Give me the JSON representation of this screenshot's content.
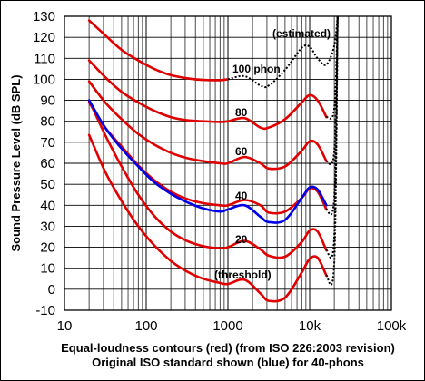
{
  "chart_data": {
    "type": "line",
    "xscale": "log",
    "xlim": [
      10,
      100000
    ],
    "ylim": [
      -10,
      130
    ],
    "grid": true,
    "x_ticks": [
      "10",
      "100",
      "1000",
      "10k",
      "100k"
    ],
    "y_ticks": [
      "130",
      "120",
      "110",
      "100",
      "90",
      "80",
      "70",
      "60",
      "50",
      "40",
      "30",
      "20",
      "10",
      "0",
      "-10"
    ],
    "ylabel": "Sound Pressure Level (dB SPL)",
    "xlabel_line1": "Equal-loudness contours (red) (from ISO 226:2003 revision)",
    "xlabel_line2": "Original ISO standard shown (blue) for 40-phons",
    "annotations": {
      "estimated": "(estimated)",
      "phon100": "100 phon",
      "phon80": "80",
      "phon60": "60",
      "phon40": "40",
      "phon20": "20",
      "threshold": "(threshold)"
    },
    "series": [
      {
        "color": "#e00000",
        "dashed_above_hz": 1000,
        "points": [
          [
            20,
            128
          ],
          [
            31.5,
            121
          ],
          [
            50,
            114
          ],
          [
            80,
            109
          ],
          [
            125,
            105
          ],
          [
            200,
            102
          ],
          [
            315,
            100.5
          ],
          [
            500,
            99.7
          ],
          [
            800,
            99.6
          ],
          [
            1000,
            100
          ],
          [
            1600,
            101.5
          ],
          [
            2500,
            97
          ],
          [
            3150,
            97
          ],
          [
            5000,
            104.5
          ],
          [
            8000,
            115
          ],
          [
            10000,
            115.5
          ],
          [
            12500,
            110
          ],
          [
            16000,
            107
          ],
          [
            20000,
            116
          ],
          [
            22000,
            130
          ]
        ]
      },
      {
        "color": "#e00000",
        "dashed_above_hz": 16000,
        "points": [
          [
            20,
            109
          ],
          [
            31.5,
            101
          ],
          [
            50,
            94
          ],
          [
            80,
            89
          ],
          [
            125,
            85
          ],
          [
            200,
            82
          ],
          [
            315,
            80.5
          ],
          [
            500,
            80
          ],
          [
            800,
            79.7
          ],
          [
            1000,
            80
          ],
          [
            1600,
            81.5
          ],
          [
            2500,
            77
          ],
          [
            3150,
            77
          ],
          [
            5000,
            81
          ],
          [
            8000,
            89
          ],
          [
            10000,
            92.5
          ],
          [
            12500,
            90
          ],
          [
            16000,
            82
          ],
          [
            20000,
            86
          ],
          [
            22000,
            130
          ]
        ]
      },
      {
        "color": "#e00000",
        "dashed_above_hz": 16000,
        "points": [
          [
            20,
            99
          ],
          [
            31.5,
            89
          ],
          [
            50,
            81
          ],
          [
            80,
            74
          ],
          [
            125,
            69
          ],
          [
            200,
            65
          ],
          [
            315,
            62.5
          ],
          [
            500,
            61
          ],
          [
            800,
            60
          ],
          [
            1000,
            60
          ],
          [
            1600,
            63
          ],
          [
            2500,
            60
          ],
          [
            3150,
            57.5
          ],
          [
            5000,
            58.5
          ],
          [
            8000,
            66
          ],
          [
            10000,
            70.5
          ],
          [
            12500,
            69
          ],
          [
            16000,
            61
          ],
          [
            20000,
            66
          ],
          [
            22000,
            130
          ]
        ]
      },
      {
        "color": "#e00000",
        "dashed_above_hz": 16000,
        "points": [
          [
            20,
            89
          ],
          [
            31.5,
            77
          ],
          [
            50,
            68
          ],
          [
            80,
            59
          ],
          [
            125,
            52
          ],
          [
            200,
            46.5
          ],
          [
            315,
            43
          ],
          [
            500,
            41
          ],
          [
            800,
            40
          ],
          [
            1000,
            40
          ],
          [
            1600,
            42.5
          ],
          [
            2500,
            40
          ],
          [
            3150,
            36.5
          ],
          [
            5000,
            37
          ],
          [
            8000,
            43.5
          ],
          [
            10000,
            48
          ],
          [
            12500,
            46.5
          ],
          [
            16000,
            38
          ],
          [
            20000,
            44
          ],
          [
            22000,
            130
          ]
        ]
      },
      {
        "color": "#e00000",
        "dashed_above_hz": 16000,
        "points": [
          [
            20,
            90
          ],
          [
            31.5,
            73.5
          ],
          [
            50,
            58.5
          ],
          [
            80,
            45
          ],
          [
            125,
            35
          ],
          [
            200,
            27.5
          ],
          [
            315,
            23
          ],
          [
            500,
            20.5
          ],
          [
            800,
            19.5
          ],
          [
            1000,
            20
          ],
          [
            1600,
            23
          ],
          [
            2500,
            19
          ],
          [
            3150,
            16
          ],
          [
            5000,
            15.5
          ],
          [
            8000,
            22.5
          ],
          [
            10000,
            28
          ],
          [
            12500,
            27.5
          ],
          [
            16000,
            18.5
          ],
          [
            20000,
            25
          ],
          [
            22000,
            130
          ]
        ]
      },
      {
        "color": "#e00000",
        "dashed_above_hz": 16000,
        "points": [
          [
            20,
            73.5
          ],
          [
            31.5,
            56
          ],
          [
            50,
            42
          ],
          [
            80,
            30
          ],
          [
            125,
            21
          ],
          [
            200,
            13.5
          ],
          [
            315,
            8.5
          ],
          [
            500,
            5
          ],
          [
            800,
            3
          ],
          [
            1000,
            2.5
          ],
          [
            1600,
            4.5
          ],
          [
            2500,
            -2
          ],
          [
            3150,
            -5.5
          ],
          [
            5000,
            -4
          ],
          [
            8000,
            8
          ],
          [
            10000,
            14.5
          ],
          [
            12500,
            15
          ],
          [
            16000,
            6.5
          ],
          [
            20000,
            13
          ],
          [
            22000,
            130
          ]
        ]
      },
      {
        "color": "#0000e6",
        "dashed_above_hz": null,
        "points": [
          [
            20,
            90
          ],
          [
            31.5,
            77
          ],
          [
            50,
            67
          ],
          [
            80,
            58.5
          ],
          [
            125,
            51
          ],
          [
            200,
            45.5
          ],
          [
            315,
            41.5
          ],
          [
            500,
            38.5
          ],
          [
            800,
            37
          ],
          [
            1000,
            38
          ],
          [
            1600,
            40
          ],
          [
            2500,
            34.5
          ],
          [
            3150,
            32
          ],
          [
            5000,
            33
          ],
          [
            8000,
            43.5
          ],
          [
            10000,
            48.5
          ],
          [
            12500,
            47.5
          ],
          [
            16000,
            40
          ]
        ]
      }
    ]
  }
}
